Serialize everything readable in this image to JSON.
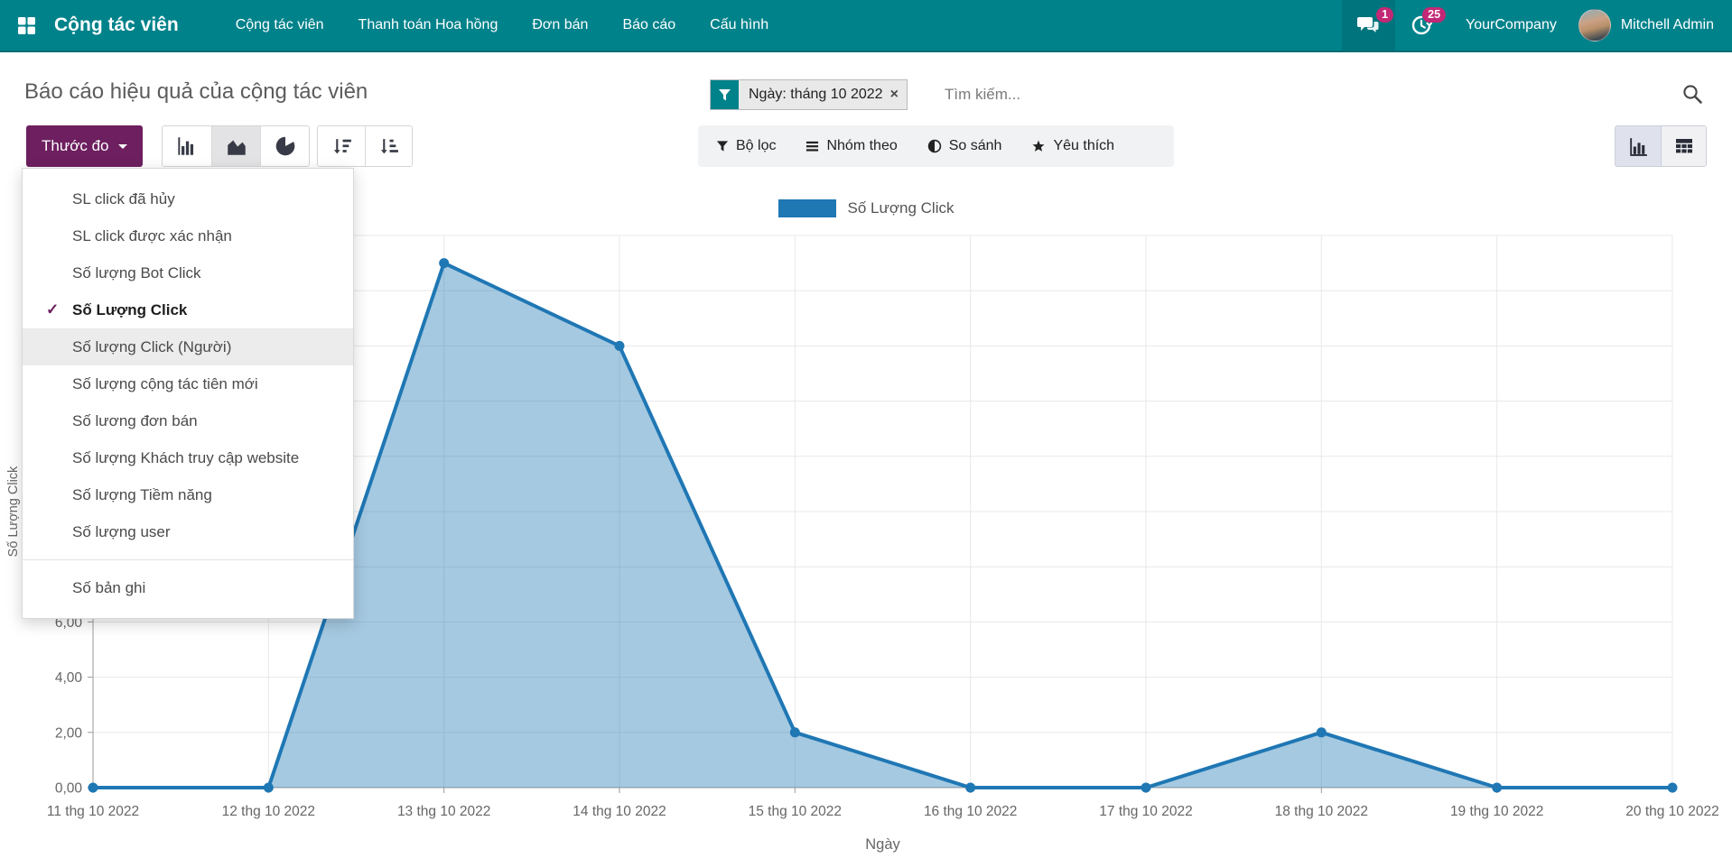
{
  "colors": {
    "navbar": "#00828b",
    "primary": "#6d1f5f",
    "badge": "#c22875",
    "chart_line": "#1f77b4",
    "chart_fill": "rgba(31,119,180,0.40)",
    "grid": "#e8e8e8",
    "axis": "#9a9a9a"
  },
  "navbar": {
    "brand": "Cộng tác viên",
    "menu": [
      "Cộng tác viên",
      "Thanh toán Hoa hồng",
      "Đơn bán",
      "Báo cáo",
      "Cấu hình"
    ],
    "messages_badge": "1",
    "activities_badge": "25",
    "company": "YourCompany",
    "user": "Mitchell Admin"
  },
  "breadcrumb": {
    "title": "Báo cáo hiệu quả của cộng tác viên"
  },
  "search": {
    "facet_label": "Ngày: tháng 10 2022",
    "remove_label": "×",
    "placeholder": "Tìm kiếm..."
  },
  "toolbar": {
    "measures_label": "Thước đo",
    "filters_label": "Bộ lọc",
    "group_by_label": "Nhóm theo",
    "comparison_label": "So sánh",
    "favorites_label": "Yêu thích"
  },
  "measures_menu": {
    "items": [
      {
        "label": "SL click đã hủy",
        "state": "normal"
      },
      {
        "label": "SL click được xác nhận",
        "state": "normal"
      },
      {
        "label": "Số lượng Bot Click",
        "state": "normal"
      },
      {
        "label": "Số Lượng Click",
        "state": "checked"
      },
      {
        "label": "Số lượng Click (Người)",
        "state": "hover"
      },
      {
        "label": "Số lượng cộng tác tiên mới",
        "state": "normal"
      },
      {
        "label": "Số lương đơn bán",
        "state": "normal"
      },
      {
        "label": "Số lượng Khách truy cập website",
        "state": "normal"
      },
      {
        "label": "Số lượng Tiềm năng",
        "state": "normal"
      },
      {
        "label": "Số lượng user",
        "state": "normal"
      }
    ],
    "footer_item": {
      "label": "Số bản ghi"
    }
  },
  "chart_data": {
    "type": "area",
    "categories": [
      "11 thg 10 2022",
      "12 thg 10 2022",
      "13 thg 10 2022",
      "14 thg 10 2022",
      "15 thg 10 2022",
      "16 thg 10 2022",
      "17 thg 10 2022",
      "18 thg 10 2022",
      "19 thg 10 2022",
      "20 thg 10 2022"
    ],
    "series": [
      {
        "name": "Số Lượng Click",
        "values": [
          0,
          0,
          19,
          16,
          2,
          0,
          0,
          2,
          0,
          0
        ]
      }
    ],
    "xlabel": "Ngày",
    "ylabel": "Số Lượng Click",
    "ylim": [
      0,
      20
    ],
    "ytick_step": 2,
    "grid": true,
    "legend_position": "top-center",
    "marker": "circle"
  }
}
